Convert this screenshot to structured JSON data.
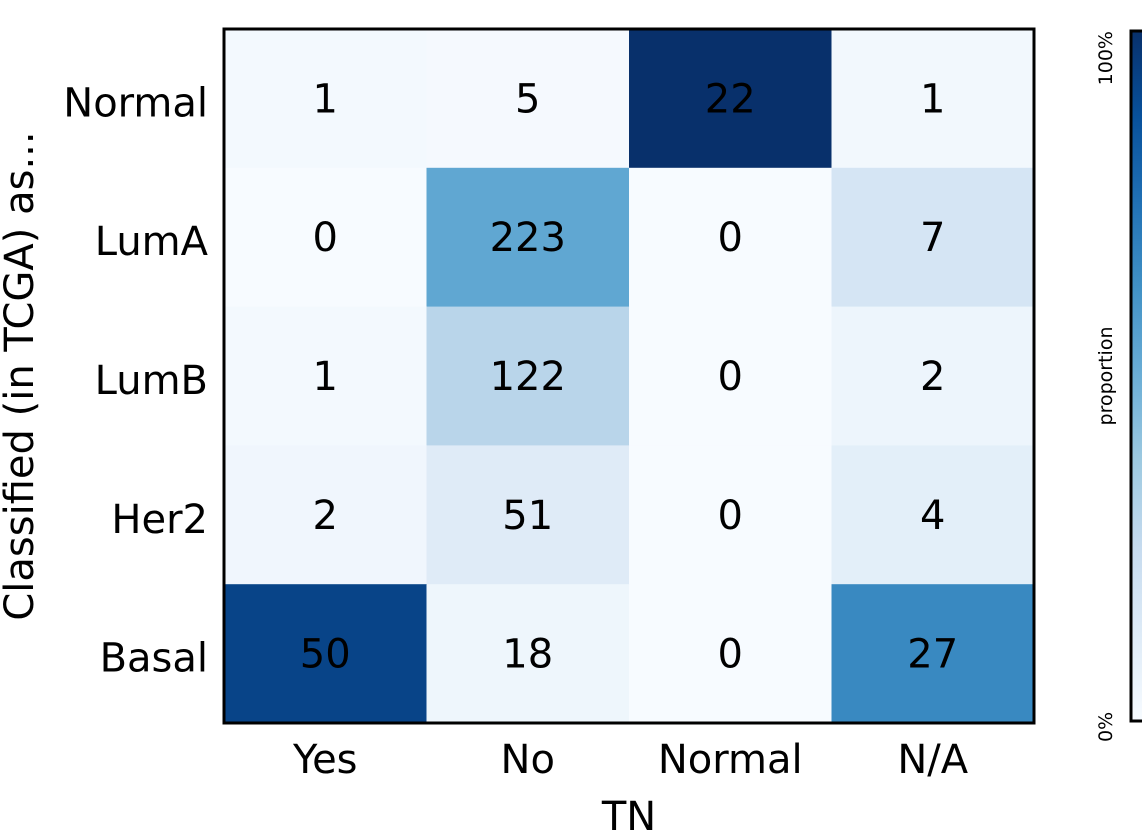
{
  "chart_data": {
    "type": "heatmap",
    "title": "",
    "xlabel": "TN",
    "ylabel": "Classified (in TCGA) as...",
    "columns": [
      "Yes",
      "No",
      "Normal",
      "N/A"
    ],
    "rows": [
      "Normal",
      "LumA",
      "LumB",
      "Her2",
      "Basal"
    ],
    "values": [
      [
        1,
        5,
        22,
        1
      ],
      [
        0,
        223,
        0,
        7
      ],
      [
        1,
        122,
        0,
        2
      ],
      [
        2,
        51,
        0,
        4
      ],
      [
        50,
        18,
        0,
        27
      ]
    ],
    "color_normalization": "column proportion",
    "colormap": "Blues",
    "colorbar": {
      "label": "proportion",
      "min_label": "0%",
      "max_label": "100%"
    }
  }
}
